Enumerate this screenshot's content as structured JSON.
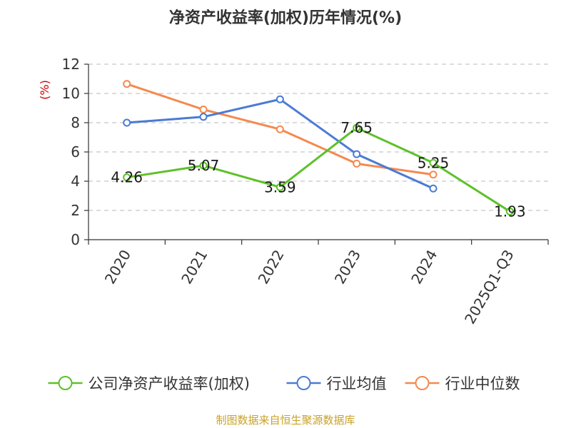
{
  "chart_data": {
    "type": "line",
    "title": "净资产收益率(加权)历年情况(%)",
    "ylabel": "(%)",
    "categories": [
      "2020",
      "2021",
      "2022",
      "2023",
      "2024",
      "2025Q1-Q3"
    ],
    "ylim": [
      0,
      12
    ],
    "yticks": [
      0,
      2,
      4,
      6,
      8,
      10,
      12
    ],
    "grid": true,
    "legend_position": "bottom",
    "series": [
      {
        "name": "公司净资产收益率(加权)",
        "color": "#5dc129",
        "values": [
          4.26,
          5.07,
          3.59,
          7.65,
          5.25,
          1.93
        ],
        "labels": [
          "4.26",
          "5.07",
          "3.59",
          "7.65",
          "5.25",
          "1.93"
        ]
      },
      {
        "name": "行业均值",
        "color": "#4a7bd5",
        "values": [
          8.0,
          8.4,
          9.6,
          5.85,
          3.5,
          null
        ]
      },
      {
        "name": "行业中位数",
        "color": "#f5894f",
        "values": [
          10.65,
          8.9,
          7.55,
          5.2,
          4.45,
          null
        ]
      }
    ]
  },
  "colors": {
    "axis": "#333333",
    "grid": "#c8c8c8",
    "ylabel": "#cc0000",
    "source": "#c9a227"
  },
  "source": "制图数据来自恒生聚源数据库"
}
